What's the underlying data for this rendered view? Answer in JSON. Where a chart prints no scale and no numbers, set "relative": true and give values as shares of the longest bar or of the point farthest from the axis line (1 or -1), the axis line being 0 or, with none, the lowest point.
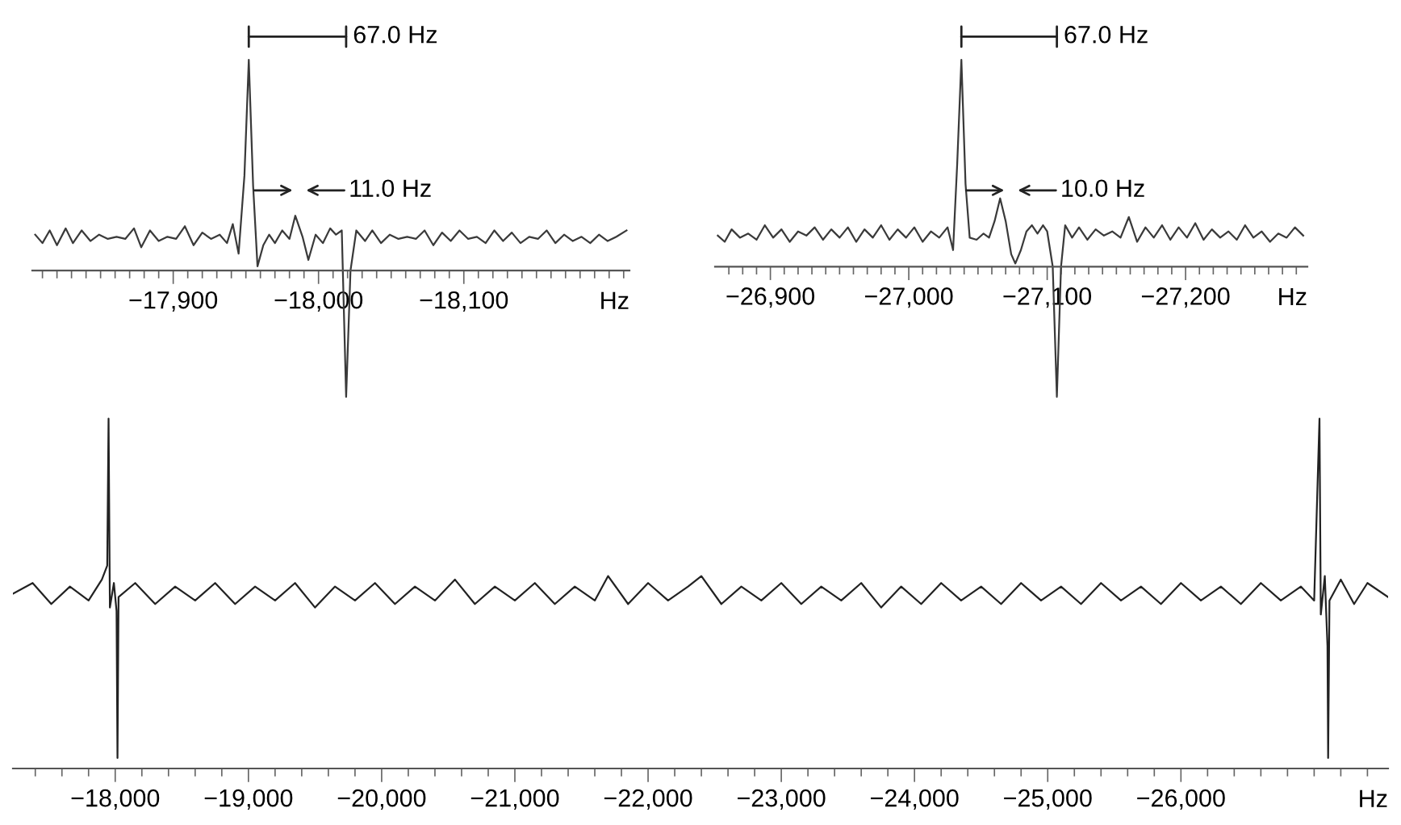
{
  "chart_data": [
    {
      "type": "line",
      "relative": true,
      "xlabel": "Hz",
      "xlim": [
        -17803,
        -18214
      ],
      "xticks": [
        {
          "value": -17810,
          "label": null
        },
        {
          "value": -17820,
          "label": null
        },
        {
          "value": -17830,
          "label": null
        },
        {
          "value": -17840,
          "label": null
        },
        {
          "value": -17850,
          "label": null
        },
        {
          "value": -17860,
          "label": null
        },
        {
          "value": -17870,
          "label": null
        },
        {
          "value": -17880,
          "label": null
        },
        {
          "value": -17890,
          "label": null
        },
        {
          "value": -17900,
          "label": "−17,900"
        },
        {
          "value": -17910,
          "label": null
        },
        {
          "value": -17920,
          "label": null
        },
        {
          "value": -17930,
          "label": null
        },
        {
          "value": -17940,
          "label": null
        },
        {
          "value": -17950,
          "label": null
        },
        {
          "value": -17960,
          "label": null
        },
        {
          "value": -17970,
          "label": null
        },
        {
          "value": -17980,
          "label": null
        },
        {
          "value": -17990,
          "label": null
        },
        {
          "value": -18000,
          "label": "−18,000"
        },
        {
          "value": -18010,
          "label": null
        },
        {
          "value": -18020,
          "label": null
        },
        {
          "value": -18030,
          "label": null
        },
        {
          "value": -18040,
          "label": null
        },
        {
          "value": -18050,
          "label": null
        },
        {
          "value": -18060,
          "label": null
        },
        {
          "value": -18070,
          "label": null
        },
        {
          "value": -18080,
          "label": null
        },
        {
          "value": -18090,
          "label": null
        },
        {
          "value": -18100,
          "label": "−18,100"
        },
        {
          "value": -18110,
          "label": null
        },
        {
          "value": -18120,
          "label": null
        },
        {
          "value": -18130,
          "label": null
        },
        {
          "value": -18140,
          "label": null
        },
        {
          "value": -18150,
          "label": null
        },
        {
          "value": -18160,
          "label": null
        },
        {
          "value": -18170,
          "label": null
        },
        {
          "value": -18180,
          "label": null
        },
        {
          "value": -18190,
          "label": null
        },
        {
          "value": -18200,
          "label": null
        },
        {
          "value": -18210,
          "label": null
        }
      ],
      "annotations": [
        "67.0 Hz",
        "11.0 Hz"
      ],
      "series": [
        {
          "color": "#3a3a3a",
          "x": [
            -17805,
            -17810,
            -17815,
            -17820,
            -17826,
            -17831,
            -17837,
            -17843,
            -17849,
            -17855,
            -17861,
            -17867,
            -17873,
            -17878,
            -17884,
            -17890,
            -17896,
            -17902,
            -17908,
            -17914,
            -17920,
            -17926,
            -17932,
            -17937,
            -17941,
            -17945,
            -17949,
            -17952,
            -17955,
            -17958,
            -17962,
            -17966,
            -17970,
            -17975,
            -17980,
            -17984,
            -17989,
            -17993,
            -17998,
            -18003,
            -18008,
            -18012,
            -18016,
            -18019,
            -18022,
            -18026,
            -18032,
            -18037,
            -18043,
            -18049,
            -18055,
            -18061,
            -18067,
            -18073,
            -18079,
            -18085,
            -18091,
            -18097,
            -18103,
            -18109,
            -18115,
            -18121,
            -18127,
            -18133,
            -18139,
            -18145,
            -18151,
            -18157,
            -18163,
            -18169,
            -18175,
            -18181,
            -18187,
            -18193,
            -18199,
            -18205,
            -18212
          ],
          "values": [
            0.17,
            0.13,
            0.19,
            0.12,
            0.2,
            0.13,
            0.19,
            0.14,
            0.17,
            0.15,
            0.16,
            0.15,
            0.2,
            0.11,
            0.19,
            0.14,
            0.16,
            0.15,
            0.21,
            0.12,
            0.18,
            0.15,
            0.17,
            0.13,
            0.22,
            0.08,
            0.45,
            1.0,
            0.4,
            0.02,
            0.12,
            0.17,
            0.13,
            0.19,
            0.15,
            0.26,
            0.16,
            0.05,
            0.17,
            0.13,
            0.2,
            0.17,
            0.19,
            -0.6,
            0.0,
            0.19,
            0.14,
            0.19,
            0.13,
            0.17,
            0.15,
            0.16,
            0.15,
            0.19,
            0.12,
            0.18,
            0.14,
            0.19,
            0.15,
            0.16,
            0.13,
            0.19,
            0.14,
            0.18,
            0.13,
            0.16,
            0.15,
            0.19,
            0.13,
            0.17,
            0.14,
            0.16,
            0.13,
            0.17,
            0.14,
            0.16,
            0.19
          ]
        }
      ]
    },
    {
      "type": "line",
      "relative": true,
      "xlabel": "Hz",
      "xlim": [
        -26860,
        -27288
      ],
      "xticks": [
        {
          "value": -26870,
          "label": null
        },
        {
          "value": -26880,
          "label": null
        },
        {
          "value": -26890,
          "label": null
        },
        {
          "value": -26900,
          "label": "−26,900"
        },
        {
          "value": -26910,
          "label": null
        },
        {
          "value": -26920,
          "label": null
        },
        {
          "value": -26930,
          "label": null
        },
        {
          "value": -26940,
          "label": null
        },
        {
          "value": -26950,
          "label": null
        },
        {
          "value": -26960,
          "label": null
        },
        {
          "value": -26970,
          "label": null
        },
        {
          "value": -26980,
          "label": null
        },
        {
          "value": -26990,
          "label": null
        },
        {
          "value": -27000,
          "label": "−27,000"
        },
        {
          "value": -27010,
          "label": null
        },
        {
          "value": -27020,
          "label": null
        },
        {
          "value": -27030,
          "label": null
        },
        {
          "value": -27040,
          "label": null
        },
        {
          "value": -27050,
          "label": null
        },
        {
          "value": -27060,
          "label": null
        },
        {
          "value": -27070,
          "label": null
        },
        {
          "value": -27080,
          "label": null
        },
        {
          "value": -27090,
          "label": null
        },
        {
          "value": -27100,
          "label": "−27,100"
        },
        {
          "value": -27110,
          "label": null
        },
        {
          "value": -27120,
          "label": null
        },
        {
          "value": -27130,
          "label": null
        },
        {
          "value": -27140,
          "label": null
        },
        {
          "value": -27150,
          "label": null
        },
        {
          "value": -27160,
          "label": null
        },
        {
          "value": -27170,
          "label": null
        },
        {
          "value": -27180,
          "label": null
        },
        {
          "value": -27190,
          "label": null
        },
        {
          "value": -27200,
          "label": "−27,200"
        },
        {
          "value": -27210,
          "label": null
        },
        {
          "value": -27220,
          "label": null
        },
        {
          "value": -27230,
          "label": null
        },
        {
          "value": -27240,
          "label": null
        },
        {
          "value": -27250,
          "label": null
        },
        {
          "value": -27260,
          "label": null
        },
        {
          "value": -27270,
          "label": null
        },
        {
          "value": -27280,
          "label": null
        }
      ],
      "annotations": [
        "67.0 Hz",
        "10.0 Hz"
      ],
      "series": [
        {
          "color": "#3a3a3a",
          "x": [
            -26862,
            -26867,
            -26872,
            -26878,
            -26884,
            -26890,
            -26896,
            -26902,
            -26908,
            -26914,
            -26920,
            -26926,
            -26932,
            -26938,
            -26944,
            -26950,
            -26956,
            -26962,
            -26968,
            -26974,
            -26980,
            -26986,
            -26992,
            -26998,
            -27004,
            -27010,
            -27016,
            -27022,
            -27028,
            -27032,
            -27035,
            -27038,
            -27041,
            -27044,
            -27049,
            -27054,
            -27058,
            -27062,
            -27066,
            -27070,
            -27074,
            -27077,
            -27081,
            -27085,
            -27089,
            -27093,
            -27097,
            -27100,
            -27104,
            -27107,
            -27110,
            -27113,
            -27118,
            -27123,
            -27129,
            -27135,
            -27141,
            -27147,
            -27153,
            -27159,
            -27165,
            -27171,
            -27177,
            -27183,
            -27189,
            -27195,
            -27201,
            -27207,
            -27213,
            -27219,
            -27225,
            -27231,
            -27237,
            -27243,
            -27249,
            -27255,
            -27261,
            -27267,
            -27273,
            -27279,
            -27285
          ],
          "values": [
            0.15,
            0.12,
            0.18,
            0.14,
            0.16,
            0.13,
            0.2,
            0.14,
            0.18,
            0.12,
            0.17,
            0.15,
            0.19,
            0.13,
            0.18,
            0.14,
            0.19,
            0.12,
            0.18,
            0.14,
            0.2,
            0.13,
            0.18,
            0.14,
            0.19,
            0.12,
            0.17,
            0.14,
            0.19,
            0.08,
            0.5,
            1.0,
            0.4,
            0.14,
            0.13,
            0.16,
            0.14,
            0.22,
            0.33,
            0.22,
            0.06,
            0.015,
            0.08,
            0.17,
            0.2,
            0.16,
            0.2,
            0.17,
            0.0,
            -0.63,
            0.0,
            0.2,
            0.14,
            0.19,
            0.13,
            0.18,
            0.15,
            0.17,
            0.14,
            0.24,
            0.12,
            0.19,
            0.14,
            0.2,
            0.13,
            0.19,
            0.14,
            0.21,
            0.13,
            0.18,
            0.14,
            0.17,
            0.13,
            0.2,
            0.14,
            0.17,
            0.12,
            0.16,
            0.14,
            0.19,
            0.15
          ]
        }
      ]
    },
    {
      "type": "line",
      "relative": true,
      "xlabel": "Hz",
      "xlim": [
        -17232,
        -27555
      ],
      "xticks": [
        {
          "value": -17400,
          "label": null
        },
        {
          "value": -17600,
          "label": null
        },
        {
          "value": -17800,
          "label": null
        },
        {
          "value": -18000,
          "label": "−18,000"
        },
        {
          "value": -18200,
          "label": null
        },
        {
          "value": -18400,
          "label": null
        },
        {
          "value": -18600,
          "label": null
        },
        {
          "value": -18800,
          "label": null
        },
        {
          "value": -19000,
          "label": "−19,000"
        },
        {
          "value": -19200,
          "label": null
        },
        {
          "value": -19400,
          "label": null
        },
        {
          "value": -19600,
          "label": null
        },
        {
          "value": -19800,
          "label": null
        },
        {
          "value": -20000,
          "label": "−20,000"
        },
        {
          "value": -20200,
          "label": null
        },
        {
          "value": -20400,
          "label": null
        },
        {
          "value": -20600,
          "label": null
        },
        {
          "value": -20800,
          "label": null
        },
        {
          "value": -21000,
          "label": "−21,000"
        },
        {
          "value": -21200,
          "label": null
        },
        {
          "value": -21400,
          "label": null
        },
        {
          "value": -21600,
          "label": null
        },
        {
          "value": -21800,
          "label": null
        },
        {
          "value": -22000,
          "label": "−22,000"
        },
        {
          "value": -22200,
          "label": null
        },
        {
          "value": -22400,
          "label": null
        },
        {
          "value": -22600,
          "label": null
        },
        {
          "value": -22800,
          "label": null
        },
        {
          "value": -23000,
          "label": "−23,000"
        },
        {
          "value": -23200,
          "label": null
        },
        {
          "value": -23400,
          "label": null
        },
        {
          "value": -23600,
          "label": null
        },
        {
          "value": -23800,
          "label": null
        },
        {
          "value": -24000,
          "label": "−24,000"
        },
        {
          "value": -24200,
          "label": null
        },
        {
          "value": -24400,
          "label": null
        },
        {
          "value": -24600,
          "label": null
        },
        {
          "value": -24800,
          "label": null
        },
        {
          "value": -25000,
          "label": "−25,000"
        },
        {
          "value": -25200,
          "label": null
        },
        {
          "value": -25400,
          "label": null
        },
        {
          "value": -25600,
          "label": null
        },
        {
          "value": -25800,
          "label": null
        },
        {
          "value": -26000,
          "label": "−26,000"
        },
        {
          "value": -26200,
          "label": null
        },
        {
          "value": -26400,
          "label": null
        },
        {
          "value": -26600,
          "label": null
        },
        {
          "value": -26800,
          "label": null
        },
        {
          "value": -27000,
          "label": null
        },
        {
          "value": -27200,
          "label": null
        },
        {
          "value": -27400,
          "label": null
        }
      ],
      "series": [
        {
          "color": "#222222",
          "x": [
            -17235,
            -17380,
            -17520,
            -17660,
            -17800,
            -17900,
            -17940,
            -17950,
            -17960,
            -17990,
            -18010,
            -18017,
            -18025,
            -18150,
            -18300,
            -18450,
            -18600,
            -18750,
            -18900,
            -19050,
            -19200,
            -19350,
            -19500,
            -19650,
            -19800,
            -19950,
            -20100,
            -20250,
            -20400,
            -20550,
            -20700,
            -20850,
            -21000,
            -21150,
            -21300,
            -21450,
            -21600,
            -21700,
            -21850,
            -22000,
            -22150,
            -22300,
            -22400,
            -22550,
            -22700,
            -22850,
            -23000,
            -23150,
            -23300,
            -23450,
            -23600,
            -23750,
            -23900,
            -24050,
            -24200,
            -24350,
            -24500,
            -24650,
            -24800,
            -24950,
            -25100,
            -25250,
            -25400,
            -25550,
            -25700,
            -25850,
            -26000,
            -26150,
            -26300,
            -26450,
            -26600,
            -26750,
            -26900,
            -27000,
            -27030,
            -27040,
            -27050,
            -27080,
            -27100,
            -27105,
            -27115,
            -27200,
            -27300,
            -27400,
            -27555
          ],
          "values": [
            0.5,
            0.53,
            0.47,
            0.52,
            0.48,
            0.54,
            0.58,
            1.0,
            0.46,
            0.53,
            0.45,
            0.03,
            0.49,
            0.53,
            0.47,
            0.52,
            0.48,
            0.53,
            0.47,
            0.52,
            0.48,
            0.53,
            0.46,
            0.52,
            0.48,
            0.53,
            0.47,
            0.52,
            0.48,
            0.54,
            0.47,
            0.52,
            0.48,
            0.53,
            0.47,
            0.52,
            0.48,
            0.55,
            0.47,
            0.53,
            0.48,
            0.52,
            0.55,
            0.47,
            0.52,
            0.48,
            0.53,
            0.47,
            0.52,
            0.48,
            0.53,
            0.46,
            0.52,
            0.47,
            0.53,
            0.48,
            0.52,
            0.47,
            0.53,
            0.48,
            0.52,
            0.47,
            0.53,
            0.48,
            0.52,
            0.47,
            0.53,
            0.48,
            0.52,
            0.47,
            0.53,
            0.48,
            0.52,
            0.48,
            0.87,
            1.0,
            0.44,
            0.55,
            0.35,
            0.03,
            0.48,
            0.54,
            0.47,
            0.53,
            0.49
          ]
        }
      ]
    }
  ]
}
